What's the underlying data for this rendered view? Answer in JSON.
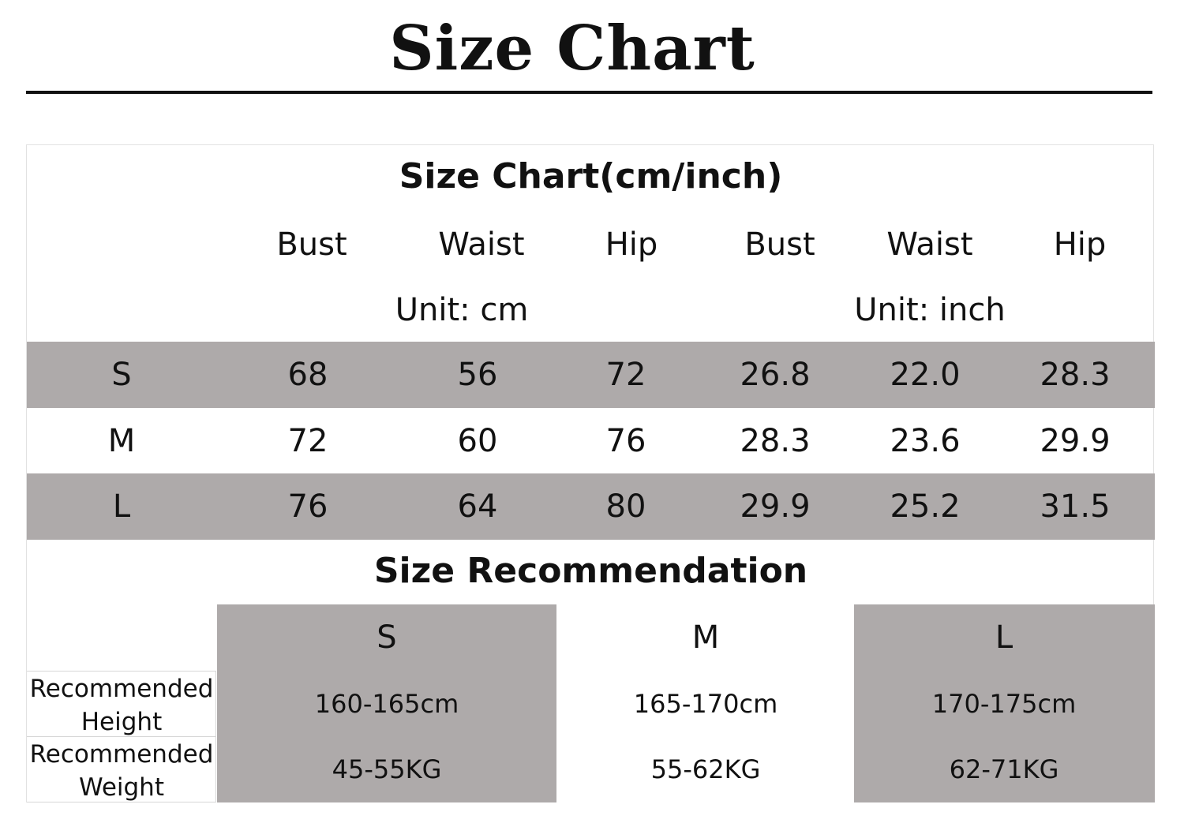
{
  "title": "Size Chart",
  "table": {
    "title": "Size Chart(cm/inch)",
    "headers": [
      "Bust",
      "Waist",
      "Hip",
      "Bust",
      "Waist",
      "Hip"
    ],
    "units": [
      "Unit: cm",
      "Unit: inch"
    ],
    "rows": [
      {
        "size": "S",
        "values": [
          "68",
          "56",
          "72",
          "26.8",
          "22.0",
          "28.3"
        ]
      },
      {
        "size": "M",
        "values": [
          "72",
          "60",
          "76",
          "28.3",
          "23.6",
          "29.9"
        ]
      },
      {
        "size": "L",
        "values": [
          "76",
          "64",
          "80",
          "29.9",
          "25.2",
          "31.5"
        ]
      }
    ]
  },
  "recommendation": {
    "title": "Size Recommendation",
    "sizes": [
      "S",
      "M",
      "L"
    ],
    "rows": [
      {
        "label": "Recommended Height",
        "values": [
          "160-165cm",
          "165-170cm",
          "170-175cm"
        ]
      },
      {
        "label": "Recommended Weight",
        "values": [
          "45-55KG",
          "55-62KG",
          "62-71KG"
        ]
      }
    ]
  },
  "colors": {
    "band_gray": "#aeaaaa",
    "text": "#111111",
    "background": "#ffffff"
  }
}
